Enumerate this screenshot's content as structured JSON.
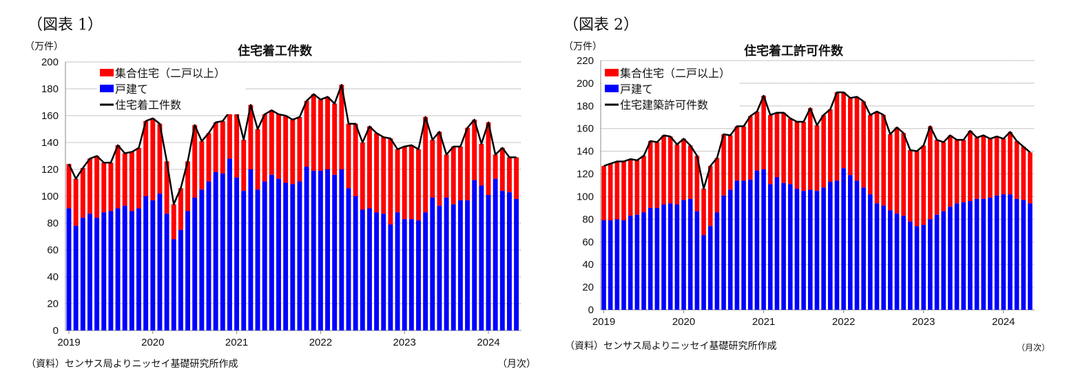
{
  "colors": {
    "multi": "#ff0000",
    "single": "#0000ff",
    "line": "#000000",
    "grid": "#888888"
  },
  "chart_data": [
    {
      "type": "bar",
      "stacked": true,
      "figure_label": "（図表 1）",
      "title": "住宅着工件数",
      "unit_label": "（万件）",
      "xlabel": "（月次）",
      "source": "（資料）センサス局よりニッセイ基礎研究所作成",
      "ylim": [
        0,
        200
      ],
      "yticks": [
        0,
        20,
        40,
        60,
        80,
        100,
        120,
        140,
        160,
        180,
        200
      ],
      "xticks": [
        "2019",
        "2020",
        "2021",
        "2022",
        "2023",
        "2024"
      ],
      "start": "2019-01",
      "end": "2024-05",
      "grid": true,
      "legend": "top-left",
      "legend_labels": {
        "multi": "集合住宅（二戸以上）",
        "single": "戸建て",
        "total": "住宅着工件数"
      },
      "single": [
        91,
        78,
        84,
        87,
        84,
        88,
        89,
        91,
        93,
        89,
        91,
        100,
        97,
        102,
        87,
        68,
        75,
        89,
        99,
        105,
        111,
        118,
        117,
        128,
        114,
        104,
        120,
        105,
        111,
        116,
        113,
        110,
        109,
        111,
        122,
        119,
        119,
        120,
        116,
        120,
        106,
        100,
        90,
        91,
        88,
        87,
        79,
        88,
        83,
        83,
        82,
        88,
        99,
        93,
        99,
        94,
        97,
        97,
        112,
        108,
        101,
        113,
        104,
        103,
        98
      ],
      "total": [
        124,
        113,
        121,
        128,
        130,
        125,
        125,
        138,
        132,
        133,
        136,
        156,
        158,
        154,
        126,
        94,
        106,
        126,
        153,
        141,
        147,
        155,
        156,
        163,
        163,
        142,
        168,
        150,
        161,
        164,
        161,
        160,
        157,
        159,
        171,
        176,
        172,
        174,
        169,
        183,
        154,
        154,
        140,
        152,
        147,
        144,
        143,
        135,
        137,
        138,
        135,
        159,
        142,
        148,
        131,
        137,
        137,
        151,
        157,
        139,
        155,
        131,
        136,
        129,
        129
      ]
    },
    {
      "type": "bar",
      "stacked": true,
      "figure_label": "（図表 2）",
      "title": "住宅着工許可件数",
      "unit_label": "（万件）",
      "xlabel": "（月次）",
      "source": "（資料）センサス局よりニッセイ基礎研究所作成",
      "ylim": [
        0,
        220
      ],
      "yticks": [
        0,
        20,
        40,
        60,
        80,
        100,
        120,
        140,
        160,
        180,
        200,
        220
      ],
      "xticks": [
        "2019",
        "2020",
        "2021",
        "2022",
        "2023",
        "2024"
      ],
      "start": "2019-01",
      "end": "2024-05",
      "grid": true,
      "legend": "top-left",
      "legend_labels": {
        "multi": "集合住宅（二戸以上）",
        "single": "戸建て",
        "total": "住宅建築許可件数"
      },
      "single": [
        79,
        79,
        80,
        79,
        83,
        84,
        86,
        90,
        90,
        93,
        94,
        93,
        97,
        98,
        87,
        66,
        74,
        86,
        101,
        106,
        114,
        114,
        115,
        123,
        124,
        111,
        117,
        112,
        111,
        107,
        105,
        106,
        105,
        108,
        113,
        114,
        125,
        119,
        114,
        108,
        102,
        94,
        92,
        88,
        85,
        83,
        78,
        74,
        75,
        80,
        84,
        87,
        91,
        94,
        95,
        96,
        98,
        98,
        99,
        101,
        102,
        102,
        98,
        97,
        94
      ],
      "total": [
        127,
        129,
        131,
        131,
        133,
        132,
        136,
        149,
        148,
        154,
        153,
        146,
        151,
        145,
        136,
        107,
        127,
        134,
        155,
        154,
        162,
        162,
        171,
        175,
        189,
        172,
        174,
        174,
        169,
        166,
        166,
        178,
        163,
        172,
        177,
        192,
        192,
        187,
        188,
        184,
        172,
        175,
        172,
        155,
        161,
        156,
        141,
        140,
        145,
        162,
        150,
        148,
        154,
        150,
        150,
        158,
        152,
        154,
        151,
        153,
        151,
        157,
        149,
        144,
        139
      ]
    }
  ]
}
